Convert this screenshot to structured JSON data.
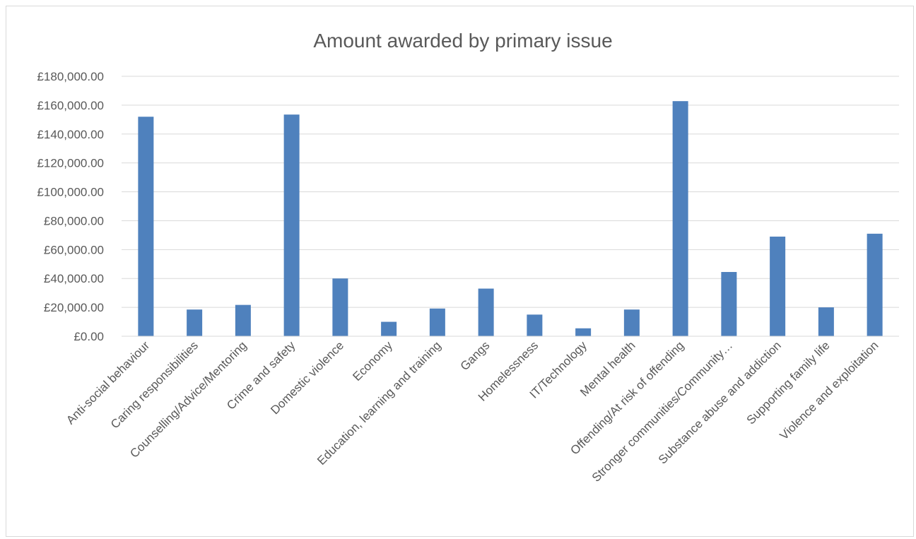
{
  "chart_data": {
    "type": "bar",
    "title": "Amount awarded by primary issue",
    "xlabel": "",
    "ylabel": "",
    "categories": [
      "Anti-social behaviour",
      "Caring responsibilities",
      "Counselling/Advice/Mentoring",
      "Crime and safety",
      "Domestic violence",
      "Economy",
      "Education, learning and training",
      "Gangs",
      "Homelessness",
      "IT/Technology",
      "Mental health",
      "Offending/At risk of offending",
      "Stronger communities/Community…",
      "Substance abuse and addiction",
      "Supporting family life",
      "Violence and exploitation"
    ],
    "values": [
      152000,
      18500,
      21700,
      153500,
      40000,
      10000,
      19200,
      33000,
      15000,
      5500,
      18500,
      162800,
      44500,
      69000,
      20000,
      71000
    ],
    "ylim": [
      0,
      180000
    ],
    "yticks": [
      0,
      20000,
      40000,
      60000,
      80000,
      100000,
      120000,
      140000,
      160000,
      180000
    ],
    "ytick_labels": [
      "£0.00",
      "£20,000.00",
      "£40,000.00",
      "£60,000.00",
      "£80,000.00",
      "£100,000.00",
      "£120,000.00",
      "£140,000.00",
      "£160,000.00",
      "£180,000.00"
    ],
    "grid": true,
    "legend": "none",
    "bar_color": "#4f81bd",
    "grid_color": "#d9d9d9",
    "text_color": "#595959"
  }
}
